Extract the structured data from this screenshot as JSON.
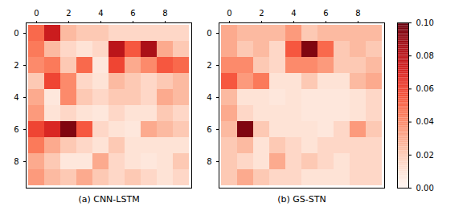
{
  "chart_data": [
    {
      "type": "heatmap",
      "xlabel": "(a) CNN-LSTM",
      "color": "Reds",
      "color_range": [
        0.0,
        0.1
      ],
      "xticks": [
        0,
        2,
        4,
        6,
        8
      ],
      "yticks": [
        0,
        2,
        4,
        6,
        8
      ],
      "values": [
        [
          0.05,
          0.075,
          0.025,
          0.02,
          0.02,
          0.015,
          0.015,
          0.015,
          0.015,
          0.015
        ],
        [
          0.045,
          0.025,
          0.015,
          0.01,
          0.015,
          0.08,
          0.055,
          0.085,
          0.03,
          0.02
        ],
        [
          0.04,
          0.045,
          0.02,
          0.05,
          0.008,
          0.06,
          0.03,
          0.04,
          0.055,
          0.05
        ],
        [
          0.02,
          0.06,
          0.04,
          0.015,
          0.01,
          0.025,
          0.02,
          0.015,
          0.02,
          0.025
        ],
        [
          0.03,
          0.008,
          0.04,
          0.02,
          0.015,
          0.02,
          0.02,
          0.015,
          0.03,
          0.025
        ],
        [
          0.035,
          0.01,
          0.015,
          0.01,
          0.008,
          0.015,
          0.01,
          0.01,
          0.02,
          0.015
        ],
        [
          0.06,
          0.07,
          0.095,
          0.055,
          0.015,
          0.01,
          0.008,
          0.03,
          0.025,
          0.02
        ],
        [
          0.045,
          0.03,
          0.02,
          0.015,
          0.01,
          0.02,
          0.01,
          0.01,
          0.01,
          0.01
        ],
        [
          0.03,
          0.02,
          0.008,
          0.008,
          0.03,
          0.015,
          0.01,
          0.008,
          0.01,
          0.02
        ],
        [
          0.035,
          0.025,
          0.02,
          0.03,
          0.02,
          0.015,
          0.02,
          0.015,
          0.01,
          0.015
        ]
      ]
    },
    {
      "type": "heatmap",
      "xlabel": "(b) GS-STN",
      "color": "Reds",
      "color_range": [
        0.0,
        0.1
      ],
      "xticks": [
        0,
        2,
        4,
        6,
        8
      ],
      "yticks": [
        0,
        2,
        4,
        6,
        8
      ],
      "color_ticks": [
        {
          "value": 0.0,
          "label": "0.00"
        },
        {
          "value": 0.02,
          "label": "0.02"
        },
        {
          "value": 0.04,
          "label": "0.04"
        },
        {
          "value": 0.06,
          "label": "0.06"
        },
        {
          "value": 0.08,
          "label": "0.08"
        },
        {
          "value": 0.1,
          "label": "0.10"
        }
      ],
      "values": [
        [
          0.03,
          0.025,
          0.025,
          0.025,
          0.035,
          0.02,
          0.025,
          0.025,
          0.025,
          0.025
        ],
        [
          0.03,
          0.02,
          0.025,
          0.015,
          0.055,
          0.095,
          0.05,
          0.02,
          0.025,
          0.02
        ],
        [
          0.04,
          0.04,
          0.02,
          0.015,
          0.04,
          0.04,
          0.035,
          0.02,
          0.02,
          0.025
        ],
        [
          0.055,
          0.035,
          0.045,
          0.01,
          0.01,
          0.02,
          0.01,
          0.01,
          0.025,
          0.03
        ],
        [
          0.025,
          0.01,
          0.01,
          0.008,
          0.01,
          0.008,
          0.008,
          0.008,
          0.01,
          0.015
        ],
        [
          0.03,
          0.015,
          0.01,
          0.01,
          0.01,
          0.008,
          0.008,
          0.008,
          0.01,
          0.015
        ],
        [
          0.025,
          0.095,
          0.02,
          0.01,
          0.01,
          0.01,
          0.008,
          0.015,
          0.035,
          0.02
        ],
        [
          0.02,
          0.025,
          0.01,
          0.02,
          0.015,
          0.01,
          0.015,
          0.015,
          0.015,
          0.015
        ],
        [
          0.02,
          0.015,
          0.01,
          0.03,
          0.015,
          0.02,
          0.015,
          0.01,
          0.015,
          0.015
        ],
        [
          0.02,
          0.03,
          0.02,
          0.015,
          0.015,
          0.01,
          0.01,
          0.01,
          0.015,
          0.015
        ]
      ]
    }
  ]
}
